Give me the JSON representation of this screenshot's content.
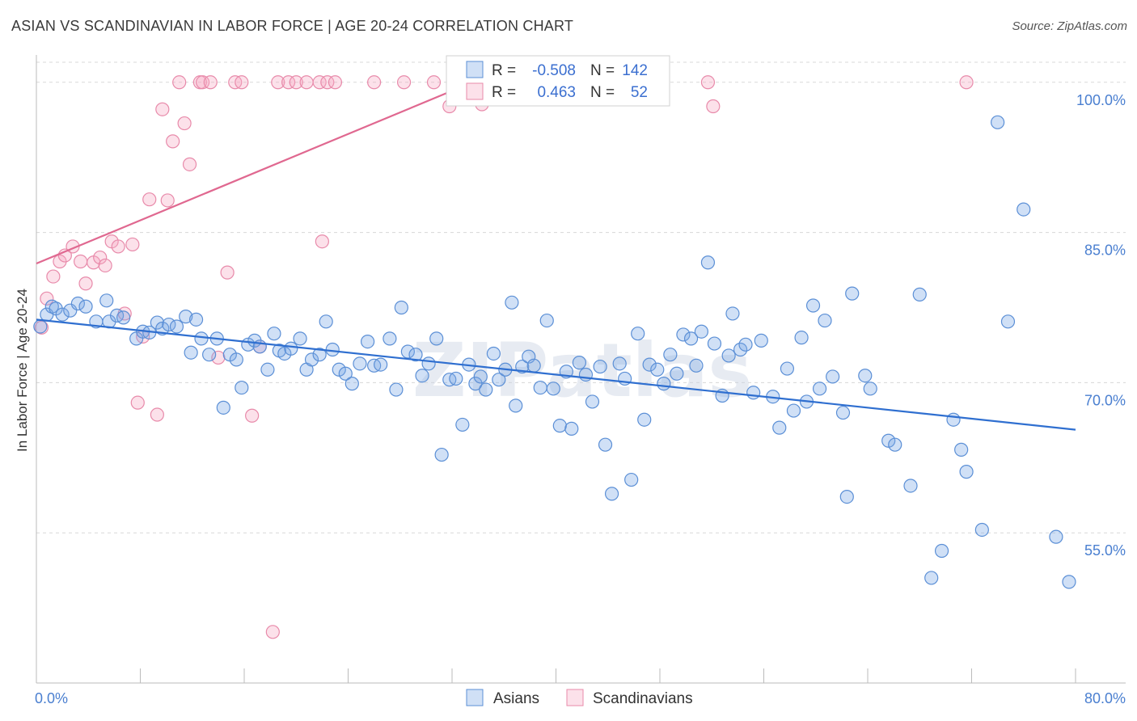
{
  "title": "ASIAN VS SCANDINAVIAN IN LABOR FORCE | AGE 20-24 CORRELATION CHART",
  "source": "Source: ZipAtlas.com",
  "watermark": "ZIPatlas",
  "colors": {
    "asian_fill": "rgba(120,165,230,0.35)",
    "asian_stroke": "#5b8fd6",
    "asian_line": "#2f6fd0",
    "scand_fill": "rgba(245,170,195,0.35)",
    "scand_stroke": "#e88aaa",
    "scand_line": "#e06890",
    "tick_text": "#4a7fd0",
    "grid": "#d8d8d8"
  },
  "legend": {
    "r_label": "R =",
    "n_label": "N =",
    "rows": [
      {
        "r": "-0.508",
        "n": "142"
      },
      {
        "r": "0.463",
        "n": "52"
      }
    ]
  },
  "chart_data": {
    "type": "scatter",
    "title": "ASIAN VS SCANDINAVIAN IN LABOR FORCE | AGE 20-24 CORRELATION CHART",
    "xlabel": "",
    "ylabel": "In Labor Force | Age 20-24",
    "xlim": [
      0,
      80
    ],
    "ylim": [
      40,
      102
    ],
    "x_tick_labels": [
      "0.0%",
      "80.0%"
    ],
    "y_ticks": [
      55,
      70,
      85,
      100
    ],
    "y_tick_labels": [
      "55.0%",
      "70.0%",
      "85.0%",
      "100.0%"
    ],
    "grid": true,
    "legend_position": "top-center",
    "series": [
      {
        "name": "Asians",
        "trend": {
          "x": [
            0,
            80
          ],
          "y": [
            76.3,
            65.3
          ]
        },
        "points": [
          [
            0.3,
            75.6
          ],
          [
            0.8,
            76.8
          ],
          [
            1.2,
            77.6
          ],
          [
            1.5,
            77.4
          ],
          [
            2.0,
            76.8
          ],
          [
            2.6,
            77.2
          ],
          [
            3.2,
            77.9
          ],
          [
            3.8,
            77.6
          ],
          [
            4.6,
            76.1
          ],
          [
            5.4,
            78.2
          ],
          [
            5.6,
            76.1
          ],
          [
            6.2,
            76.7
          ],
          [
            6.7,
            76.5
          ],
          [
            7.7,
            74.4
          ],
          [
            8.2,
            75.1
          ],
          [
            8.7,
            75.0
          ],
          [
            9.3,
            76.0
          ],
          [
            9.7,
            75.4
          ],
          [
            10.2,
            75.8
          ],
          [
            10.8,
            75.6
          ],
          [
            11.5,
            76.6
          ],
          [
            11.9,
            73.0
          ],
          [
            12.3,
            76.3
          ],
          [
            12.7,
            74.4
          ],
          [
            13.3,
            72.8
          ],
          [
            13.9,
            74.4
          ],
          [
            14.4,
            67.5
          ],
          [
            14.9,
            72.8
          ],
          [
            15.4,
            72.3
          ],
          [
            15.8,
            69.5
          ],
          [
            16.3,
            73.8
          ],
          [
            16.8,
            74.2
          ],
          [
            17.2,
            73.6
          ],
          [
            17.8,
            71.3
          ],
          [
            18.3,
            74.9
          ],
          [
            18.7,
            73.2
          ],
          [
            19.1,
            72.9
          ],
          [
            19.6,
            73.4
          ],
          [
            20.3,
            74.4
          ],
          [
            20.8,
            71.3
          ],
          [
            21.2,
            72.3
          ],
          [
            21.8,
            72.8
          ],
          [
            22.3,
            76.1
          ],
          [
            22.8,
            73.3
          ],
          [
            23.3,
            71.3
          ],
          [
            23.8,
            70.9
          ],
          [
            24.3,
            69.9
          ],
          [
            24.9,
            71.9
          ],
          [
            25.5,
            74.1
          ],
          [
            26.0,
            71.7
          ],
          [
            26.5,
            71.8
          ],
          [
            27.2,
            74.4
          ],
          [
            27.7,
            69.3
          ],
          [
            28.1,
            77.5
          ],
          [
            28.6,
            73.1
          ],
          [
            29.2,
            72.8
          ],
          [
            29.7,
            70.7
          ],
          [
            30.2,
            71.9
          ],
          [
            30.8,
            74.4
          ],
          [
            31.2,
            62.8
          ],
          [
            31.8,
            70.3
          ],
          [
            32.3,
            70.4
          ],
          [
            32.8,
            65.8
          ],
          [
            33.3,
            71.8
          ],
          [
            33.8,
            69.9
          ],
          [
            34.2,
            70.6
          ],
          [
            34.6,
            69.3
          ],
          [
            35.2,
            72.9
          ],
          [
            35.6,
            70.3
          ],
          [
            36.1,
            71.3
          ],
          [
            36.6,
            78.0
          ],
          [
            36.9,
            67.7
          ],
          [
            37.4,
            71.6
          ],
          [
            37.9,
            72.6
          ],
          [
            38.3,
            71.7
          ],
          [
            38.8,
            69.5
          ],
          [
            39.3,
            76.2
          ],
          [
            39.8,
            69.4
          ],
          [
            40.3,
            65.7
          ],
          [
            40.8,
            71.1
          ],
          [
            41.2,
            65.4
          ],
          [
            41.8,
            72.0
          ],
          [
            42.3,
            70.8
          ],
          [
            42.8,
            68.1
          ],
          [
            43.4,
            71.6
          ],
          [
            43.8,
            63.8
          ],
          [
            44.3,
            58.9
          ],
          [
            44.9,
            71.9
          ],
          [
            45.3,
            70.4
          ],
          [
            45.8,
            60.3
          ],
          [
            46.3,
            74.9
          ],
          [
            46.8,
            66.3
          ],
          [
            47.2,
            71.8
          ],
          [
            47.8,
            71.3
          ],
          [
            48.3,
            69.9
          ],
          [
            48.8,
            72.8
          ],
          [
            49.3,
            70.9
          ],
          [
            49.8,
            74.8
          ],
          [
            50.4,
            74.4
          ],
          [
            50.8,
            71.7
          ],
          [
            51.2,
            75.1
          ],
          [
            51.7,
            82.0
          ],
          [
            52.2,
            73.9
          ],
          [
            52.8,
            68.7
          ],
          [
            53.3,
            72.7
          ],
          [
            53.6,
            76.9
          ],
          [
            54.2,
            73.3
          ],
          [
            54.6,
            73.8
          ],
          [
            55.2,
            69.0
          ],
          [
            55.8,
            74.2
          ],
          [
            56.7,
            68.6
          ],
          [
            57.2,
            65.5
          ],
          [
            57.8,
            71.4
          ],
          [
            58.3,
            67.2
          ],
          [
            58.9,
            74.5
          ],
          [
            59.3,
            68.1
          ],
          [
            59.8,
            77.7
          ],
          [
            60.3,
            69.4
          ],
          [
            60.7,
            76.2
          ],
          [
            61.3,
            70.6
          ],
          [
            62.1,
            67.0
          ],
          [
            62.4,
            58.6
          ],
          [
            62.8,
            78.9
          ],
          [
            63.8,
            70.7
          ],
          [
            64.2,
            69.4
          ],
          [
            65.6,
            64.2
          ],
          [
            66.1,
            63.8
          ],
          [
            67.3,
            59.7
          ],
          [
            68.0,
            78.8
          ],
          [
            68.9,
            50.5
          ],
          [
            69.7,
            53.2
          ],
          [
            70.6,
            66.3
          ],
          [
            71.2,
            63.3
          ],
          [
            71.6,
            61.1
          ],
          [
            72.8,
            55.3
          ],
          [
            74.8,
            76.1
          ],
          [
            76.0,
            87.3
          ],
          [
            78.5,
            54.6
          ],
          [
            79.5,
            50.1
          ],
          [
            74.0,
            96.0
          ]
        ]
      },
      {
        "name": "Scandinavians",
        "trend": {
          "x": [
            0,
            36
          ],
          "y": [
            81.9,
            101.3
          ]
        },
        "points": [
          [
            0.4,
            75.5
          ],
          [
            0.8,
            78.4
          ],
          [
            1.3,
            80.6
          ],
          [
            1.8,
            82.1
          ],
          [
            2.2,
            82.7
          ],
          [
            2.8,
            83.6
          ],
          [
            3.4,
            82.1
          ],
          [
            3.8,
            79.9
          ],
          [
            4.4,
            82.0
          ],
          [
            4.9,
            82.5
          ],
          [
            5.3,
            81.7
          ],
          [
            5.8,
            84.1
          ],
          [
            6.3,
            83.6
          ],
          [
            6.8,
            76.9
          ],
          [
            7.4,
            83.8
          ],
          [
            7.8,
            68.0
          ],
          [
            8.2,
            74.6
          ],
          [
            8.7,
            88.3
          ],
          [
            9.3,
            66.8
          ],
          [
            9.7,
            97.3
          ],
          [
            10.1,
            88.2
          ],
          [
            10.5,
            94.1
          ],
          [
            11.0,
            100.0
          ],
          [
            11.4,
            95.9
          ],
          [
            11.8,
            91.8
          ],
          [
            12.6,
            100.0
          ],
          [
            12.8,
            100.0
          ],
          [
            13.4,
            100.0
          ],
          [
            14.0,
            72.5
          ],
          [
            14.7,
            81.0
          ],
          [
            15.3,
            100.0
          ],
          [
            15.8,
            100.0
          ],
          [
            16.6,
            66.7
          ],
          [
            17.2,
            73.6
          ],
          [
            18.2,
            45.1
          ],
          [
            18.6,
            100.0
          ],
          [
            19.4,
            100.0
          ],
          [
            20.0,
            100.0
          ],
          [
            20.8,
            100.0
          ],
          [
            21.8,
            100.0
          ],
          [
            22.0,
            84.1
          ],
          [
            22.4,
            100.0
          ],
          [
            23.0,
            100.0
          ],
          [
            26.0,
            100.0
          ],
          [
            28.3,
            100.0
          ],
          [
            30.6,
            100.0
          ],
          [
            31.8,
            97.6
          ],
          [
            32.9,
            100.0
          ],
          [
            34.3,
            97.8
          ],
          [
            51.7,
            100.0
          ],
          [
            52.1,
            97.6
          ],
          [
            71.6,
            100.0
          ]
        ]
      }
    ]
  },
  "bottom_legend": [
    "Asians",
    "Scandinavians"
  ]
}
